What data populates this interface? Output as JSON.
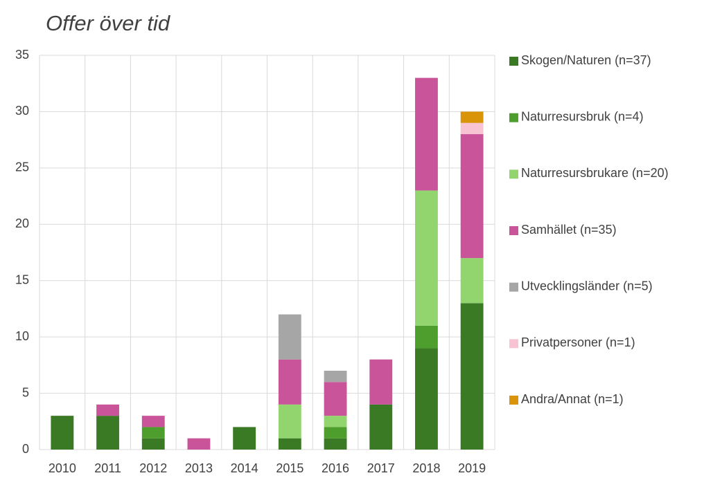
{
  "chart_data": {
    "type": "stacked_bar",
    "title": "Offer över tid",
    "categories": [
      "2010",
      "2011",
      "2012",
      "2013",
      "2014",
      "2015",
      "2016",
      "2017",
      "2018",
      "2019"
    ],
    "series": [
      {
        "name": "Skogen/Naturen (n=37)",
        "color": "#3b7a25",
        "values": [
          3,
          3,
          1,
          0,
          2,
          1,
          1,
          4,
          9,
          13
        ]
      },
      {
        "name": "Naturresursbruk (n=4)",
        "color": "#4e9e2e",
        "values": [
          0,
          0,
          1,
          0,
          0,
          0,
          1,
          0,
          2,
          0
        ]
      },
      {
        "name": "Naturresursbrukare (n=20)",
        "color": "#92d46e",
        "values": [
          0,
          0,
          0,
          0,
          0,
          3,
          1,
          0,
          12,
          4
        ]
      },
      {
        "name": "Samhället (n=35)",
        "color": "#c9549a",
        "values": [
          0,
          1,
          1,
          1,
          0,
          4,
          3,
          4,
          10,
          11
        ]
      },
      {
        "name": "Utvecklingsländer (n=5)",
        "color": "#a6a6a6",
        "values": [
          0,
          0,
          0,
          0,
          0,
          4,
          1,
          0,
          0,
          0
        ]
      },
      {
        "name": "Privatpersoner (n=1)",
        "color": "#f8c3d2",
        "values": [
          0,
          0,
          0,
          0,
          0,
          0,
          0,
          0,
          0,
          1
        ]
      },
      {
        "name": "Andra/Annat (n=1)",
        "color": "#d9940a",
        "values": [
          0,
          0,
          0,
          0,
          0,
          0,
          0,
          0,
          0,
          1
        ]
      }
    ],
    "ylim": [
      0,
      35
    ],
    "yticks": [
      0,
      5,
      10,
      15,
      20,
      25,
      30,
      35
    ],
    "grid": true,
    "legend": "right"
  }
}
